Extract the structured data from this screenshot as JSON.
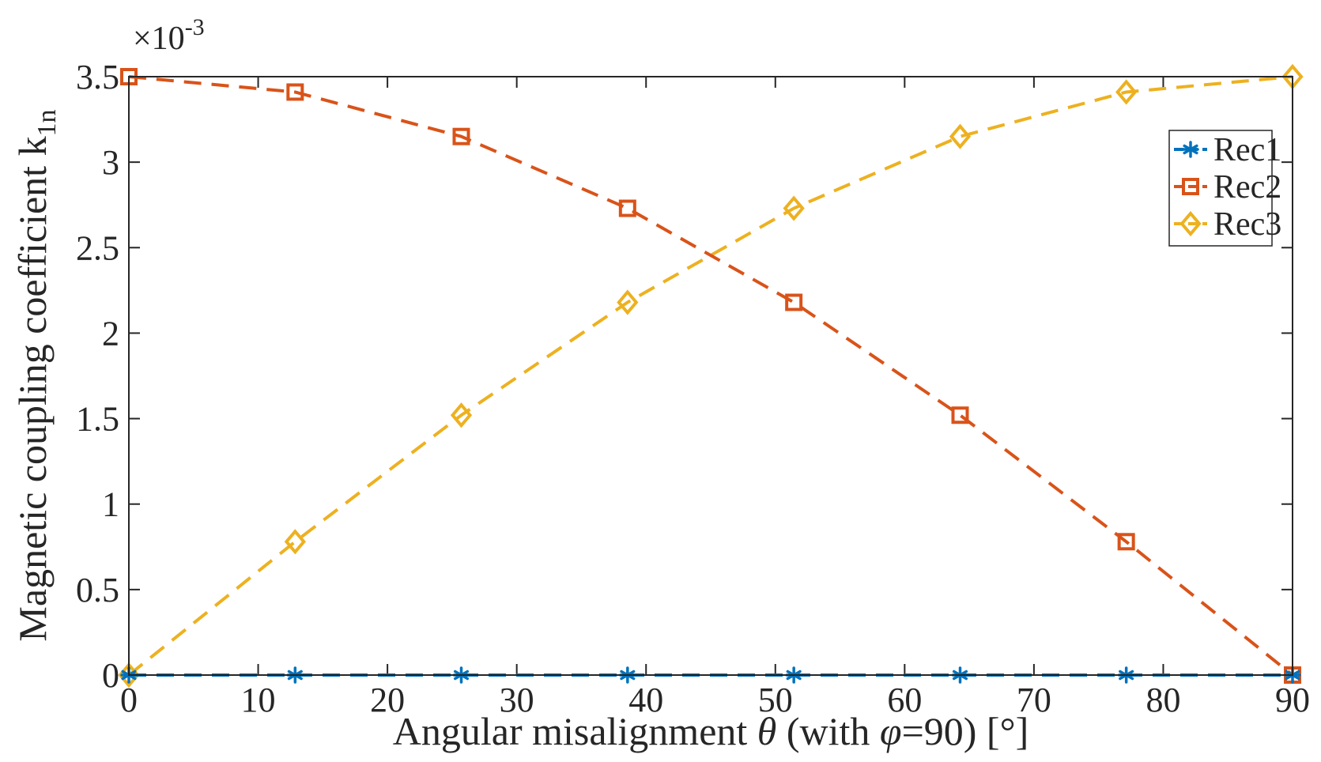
{
  "chart_data": {
    "type": "line",
    "title": "",
    "xlabel_parts": {
      "prefix": "Angular misalignment ",
      "theta": "θ",
      "middle": " (with ",
      "phi": "φ",
      "suffix": "=90) [°]"
    },
    "ylabel_parts": {
      "main": "Magnetic coupling coefficient k",
      "subscript": "1n"
    },
    "multiplier": {
      "base": "×10",
      "exponent": "-3"
    },
    "xlim": [
      0,
      90
    ],
    "ylim": [
      0,
      3.5
    ],
    "x_ticks": [
      0,
      10,
      20,
      30,
      40,
      50,
      60,
      70,
      80,
      90
    ],
    "x_tick_labels": [
      "0",
      "10",
      "20",
      "30",
      "40",
      "50",
      "60",
      "70",
      "80",
      "90"
    ],
    "y_ticks": [
      0,
      0.5,
      1,
      1.5,
      2,
      2.5,
      3,
      3.5
    ],
    "y_tick_labels": [
      "0",
      "0.5",
      "1",
      "1.5",
      "2",
      "2.5",
      "3",
      "3.5"
    ],
    "x": [
      0,
      12.86,
      25.71,
      38.57,
      51.43,
      64.29,
      77.14,
      90
    ],
    "legend_position": "top-right",
    "series": [
      {
        "name": "Rec1",
        "color": "#0072bd",
        "marker": "asterisk",
        "values": [
          0,
          0,
          0,
          0,
          0,
          0,
          0,
          0
        ]
      },
      {
        "name": "Rec2",
        "color": "#d95319",
        "marker": "square",
        "values": [
          3.5,
          3.41,
          3.15,
          2.73,
          2.18,
          1.52,
          0.78,
          0
        ]
      },
      {
        "name": "Rec3",
        "color": "#edb120",
        "marker": "diamond",
        "values": [
          0,
          0.78,
          1.52,
          2.18,
          2.73,
          3.15,
          3.41,
          3.5
        ]
      }
    ]
  }
}
